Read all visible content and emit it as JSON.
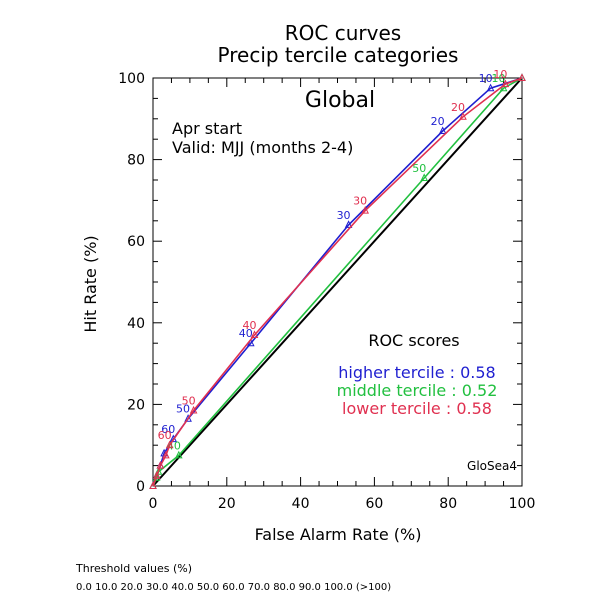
{
  "chart_data": {
    "type": "line",
    "title": "ROC curves",
    "subtitle": "Precip tercile categories",
    "region": "Global",
    "info_lines": [
      "Apr start",
      "Valid: MJJ (months 2-4)"
    ],
    "xlabel": "False Alarm Rate (%)",
    "ylabel": "Hit Rate (%)",
    "xlim": [
      0,
      100
    ],
    "ylim": [
      0,
      100
    ],
    "x_ticks": [
      "0",
      "20",
      "40",
      "60",
      "80",
      "100"
    ],
    "y_ticks": [
      "0",
      "20",
      "40",
      "60",
      "80",
      "100"
    ],
    "grid": false,
    "diagonal": {
      "color": "#000000"
    },
    "roc_scores_title": "ROC scores",
    "model": "GloSea4",
    "threshold_title": "Threshold values (%)",
    "threshold_values": "0.0 10.0 20.0 30.0 40.0 50.0 60.0 70.0 80.0 90.0 100.0 (>100)",
    "series": [
      {
        "score_text": "higher tercile : 0.58",
        "color": "#1f1fd0",
        "x": [
          0.0,
          1.0,
          2.0,
          3.0,
          5.5,
          9.5,
          26.5,
          53.0,
          78.5,
          91.5,
          100.0
        ],
        "y": [
          0.0,
          2.5,
          5.0,
          8.0,
          11.5,
          16.5,
          35.0,
          64.0,
          87.0,
          97.5,
          100.0
        ],
        "labels": [
          "",
          "",
          "",
          "",
          "60",
          "50",
          "40",
          "30",
          "20",
          "10",
          ""
        ]
      },
      {
        "score_text": "middle tercile : 0.52",
        "color": "#22c040",
        "x": [
          0.0,
          1.0,
          1.5,
          7.0,
          73.5,
          95.0,
          100.0
        ],
        "y": [
          0.0,
          2.0,
          3.5,
          7.5,
          75.5,
          97.5,
          100.0
        ],
        "labels": [
          "",
          "",
          "",
          "40",
          "50",
          "10",
          ""
        ]
      },
      {
        "score_text": "lower tercile : 0.58",
        "color": "#e03050",
        "x": [
          0.0,
          1.0,
          2.0,
          3.5,
          4.5,
          11.0,
          27.5,
          57.5,
          84.0,
          95.5,
          100.0
        ],
        "y": [
          0.0,
          2.5,
          5.0,
          7.5,
          10.0,
          18.5,
          37.0,
          67.5,
          90.5,
          98.5,
          100.0
        ],
        "labels": [
          "",
          "",
          "",
          "",
          "60",
          "50",
          "40",
          "30",
          "20",
          "10",
          ""
        ]
      }
    ]
  }
}
